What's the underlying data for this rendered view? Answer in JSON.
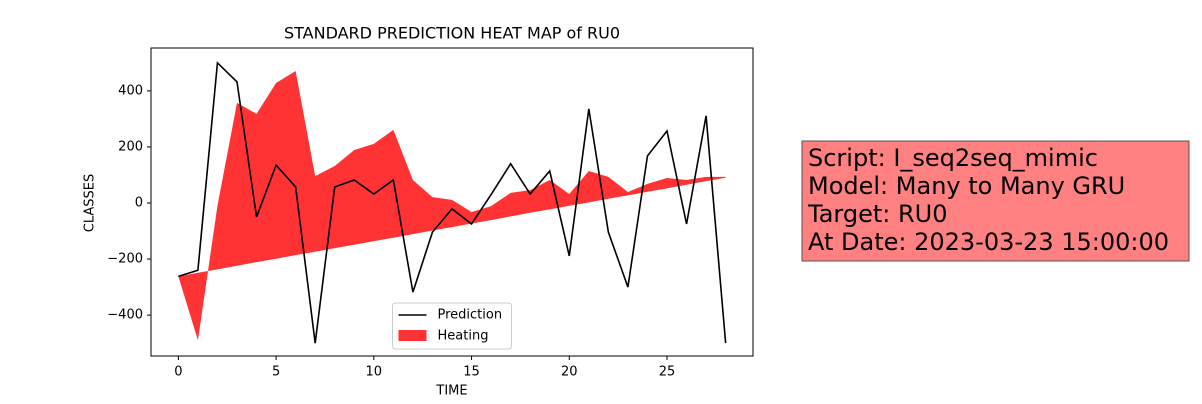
{
  "chart_data": {
    "type": "line-area",
    "title": "STANDARD PREDICTION HEAT MAP of RU0",
    "x_label": "TIME",
    "y_label": "CLASSES",
    "x": [
      0,
      1,
      2,
      3,
      4,
      5,
      6,
      7,
      8,
      9,
      10,
      11,
      12,
      13,
      14,
      15,
      16,
      17,
      18,
      19,
      20,
      21,
      22,
      23,
      24,
      25,
      26,
      27,
      28
    ],
    "series": [
      {
        "name": "Prediction",
        "color": "#000000",
        "kind": "line",
        "values": [
          -262,
          -240,
          500,
          432,
          -50,
          135,
          57,
          -500,
          57,
          82,
          32,
          82,
          -318,
          -104,
          -21,
          -75,
          30,
          140,
          32,
          114,
          -189,
          336,
          -104,
          -300,
          168,
          257,
          -75,
          311,
          -500
        ]
      },
      {
        "name": "Heating",
        "color": "#ff3333",
        "kind": "area",
        "values": [
          -262,
          -490,
          -10,
          357,
          318,
          428,
          471,
          96,
          132,
          189,
          211,
          261,
          82,
          21,
          11,
          -32,
          -11,
          36,
          46,
          82,
          32,
          114,
          93,
          39,
          68,
          89,
          82,
          93,
          93
        ],
        "base": [
          -262,
          -249,
          -237,
          -224,
          -211,
          -199,
          -186,
          -174,
          -161,
          -149,
          -136,
          -124,
          -111,
          -98,
          -86,
          -73,
          -61,
          -48,
          -35,
          -23,
          -10,
          2,
          15,
          27,
          40,
          52,
          65,
          78,
          90
        ]
      }
    ],
    "xlim": [
      -1.4,
      29.4
    ],
    "ylim": [
      -546,
      553
    ],
    "xticks": [
      0,
      5,
      10,
      15,
      20,
      25
    ],
    "yticks": [
      {
        "value": -400,
        "label": "−400"
      },
      {
        "value": -200,
        "label": "−200"
      },
      0,
      200,
      400
    ],
    "legend": "lower center",
    "annotation": [
      "Script: I_seq2seq_mimic",
      "Model: Many to Many GRU",
      "Target: RU0",
      "At Date: 2023-03-23 15:00:00"
    ]
  }
}
